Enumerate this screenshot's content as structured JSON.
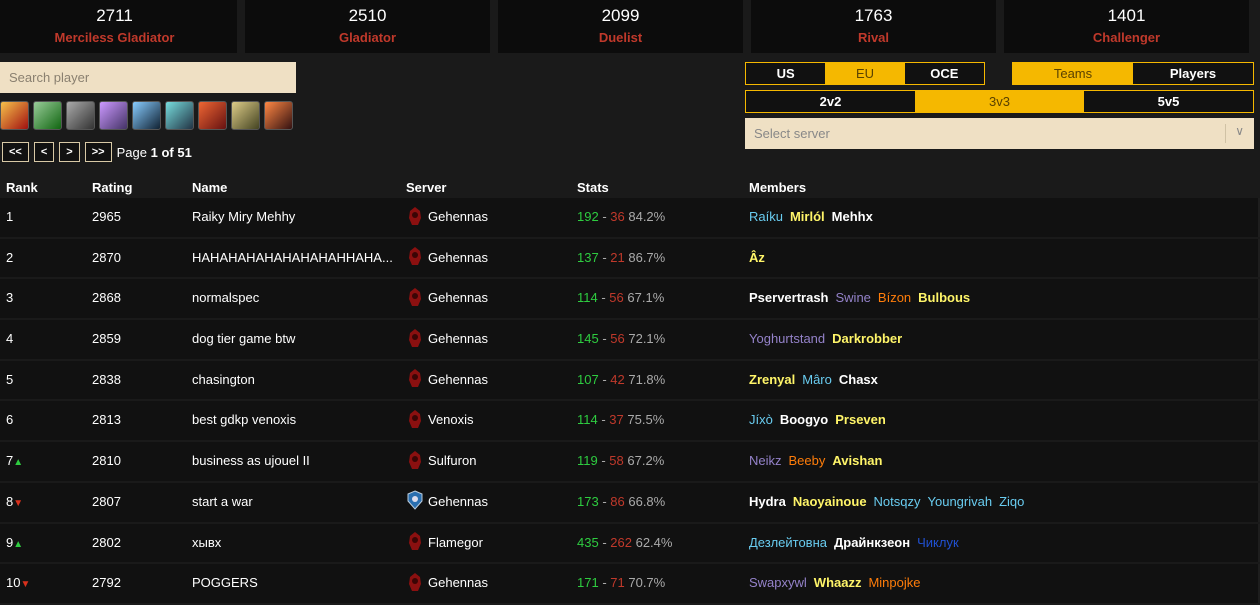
{
  "cutoffs": [
    {
      "value": "2711",
      "label": "Merciless Gladiator"
    },
    {
      "value": "2510",
      "label": "Gladiator"
    },
    {
      "value": "2099",
      "label": "Duelist"
    },
    {
      "value": "1763",
      "label": "Rival"
    },
    {
      "value": "1401",
      "label": "Challenger"
    }
  ],
  "search": {
    "placeholder": "Search player"
  },
  "class_icons": [
    "icon-class-1",
    "icon-class-2",
    "icon-class-3",
    "icon-class-4",
    "icon-class-5",
    "icon-class-6",
    "icon-class-7",
    "icon-class-8",
    "icon-class-9"
  ],
  "pager": {
    "first": "<<",
    "prev": "<",
    "next": ">",
    "last": ">>",
    "page_label": "Page",
    "page": "1",
    "of": "of",
    "total": "51"
  },
  "regions": [
    {
      "label": "US",
      "active": false
    },
    {
      "label": "EU",
      "active": true
    },
    {
      "label": "OCE",
      "active": false
    }
  ],
  "modes": [
    {
      "label": "Teams",
      "active": true
    },
    {
      "label": "Players",
      "active": false
    }
  ],
  "brackets": [
    {
      "label": "2v2",
      "active": false
    },
    {
      "label": "3v3",
      "active": true
    },
    {
      "label": "5v5",
      "active": false
    }
  ],
  "server_select": {
    "placeholder": "Select server"
  },
  "colors": {
    "accent": "#f5b800",
    "mage": "#69ccf0",
    "rogue": "#fff569",
    "priest": "#ffffff",
    "warlock": "#9482c9",
    "druid": "#ff7d0a",
    "shaman": "#2050d0",
    "win": "#2ecc40",
    "loss": "#c0392b"
  },
  "table": {
    "headers": [
      "Rank",
      "Rating",
      "Name",
      "Server",
      "Stats",
      "Members"
    ],
    "rows": [
      {
        "rank": "1",
        "trend": "",
        "rating": "2965",
        "name": "Raiky Miry Mehhy",
        "faction": "horde",
        "server": "Gehennas",
        "wins": "192",
        "losses": "36",
        "pct": "84.2%",
        "members": [
          {
            "n": "Raíku",
            "c": "mage"
          },
          {
            "n": "Mirlól",
            "c": "rogue"
          },
          {
            "n": "Mehhx",
            "c": "priest"
          }
        ]
      },
      {
        "rank": "2",
        "trend": "",
        "rating": "2870",
        "name": "HAHAHAHAHAHAHAHAHHAHA...",
        "faction": "horde",
        "server": "Gehennas",
        "wins": "137",
        "losses": "21",
        "pct": "86.7%",
        "members": [
          {
            "n": "Âz",
            "c": "rogue"
          }
        ]
      },
      {
        "rank": "3",
        "trend": "",
        "rating": "2868",
        "name": "normalspec",
        "faction": "horde",
        "server": "Gehennas",
        "wins": "114",
        "losses": "56",
        "pct": "67.1%",
        "members": [
          {
            "n": "Pservertrash",
            "c": "priest"
          },
          {
            "n": "Swine",
            "c": "warlock"
          },
          {
            "n": "Bízon",
            "c": "druid"
          },
          {
            "n": "Bulbous",
            "c": "rogue"
          }
        ]
      },
      {
        "rank": "4",
        "trend": "",
        "rating": "2859",
        "name": "dog tier game btw",
        "faction": "horde",
        "server": "Gehennas",
        "wins": "145",
        "losses": "56",
        "pct": "72.1%",
        "members": [
          {
            "n": "Yoghurtstand",
            "c": "warlock"
          },
          {
            "n": "Darkrobber",
            "c": "rogue"
          }
        ]
      },
      {
        "rank": "5",
        "trend": "",
        "rating": "2838",
        "name": "chasington",
        "faction": "horde",
        "server": "Gehennas",
        "wins": "107",
        "losses": "42",
        "pct": "71.8%",
        "members": [
          {
            "n": "Zrenyal",
            "c": "rogue"
          },
          {
            "n": "Mâro",
            "c": "mage"
          },
          {
            "n": "Chasx",
            "c": "priest"
          }
        ]
      },
      {
        "rank": "6",
        "trend": "",
        "rating": "2813",
        "name": "best gdkp venoxis",
        "faction": "horde",
        "server": "Venoxis",
        "wins": "114",
        "losses": "37",
        "pct": "75.5%",
        "members": [
          {
            "n": "Jíxò",
            "c": "mage"
          },
          {
            "n": "Boogyo",
            "c": "priest"
          },
          {
            "n": "Prseven",
            "c": "rogue"
          }
        ]
      },
      {
        "rank": "7",
        "trend": "up",
        "rating": "2810",
        "name": "business as ujouel II",
        "faction": "horde",
        "server": "Sulfuron",
        "wins": "119",
        "losses": "58",
        "pct": "67.2%",
        "members": [
          {
            "n": "Neikz",
            "c": "warlock"
          },
          {
            "n": "Beeby",
            "c": "druid"
          },
          {
            "n": "Avishan",
            "c": "rogue"
          }
        ]
      },
      {
        "rank": "8",
        "trend": "down",
        "rating": "2807",
        "name": "start a war",
        "faction": "alliance",
        "server": "Gehennas",
        "wins": "173",
        "losses": "86",
        "pct": "66.8%",
        "members": [
          {
            "n": "Hydra",
            "c": "priest"
          },
          {
            "n": "Naoyainoue",
            "c": "rogue"
          },
          {
            "n": "Notsqzy",
            "c": "mage"
          },
          {
            "n": "Youngrivah",
            "c": "mage"
          },
          {
            "n": "Ziqo",
            "c": "mage"
          }
        ]
      },
      {
        "rank": "9",
        "trend": "up",
        "rating": "2802",
        "name": "хывх",
        "faction": "horde",
        "server": "Flamegor",
        "wins": "435",
        "losses": "262",
        "pct": "62.4%",
        "members": [
          {
            "n": "Дезлейтовна",
            "c": "mage"
          },
          {
            "n": "Драйнкзеон",
            "c": "priest"
          },
          {
            "n": "Чиклук",
            "c": "shaman"
          }
        ]
      },
      {
        "rank": "10",
        "trend": "down",
        "rating": "2792",
        "name": "POGGERS",
        "faction": "horde",
        "server": "Gehennas",
        "wins": "171",
        "losses": "71",
        "pct": "70.7%",
        "members": [
          {
            "n": "Swapxywl",
            "c": "warlock"
          },
          {
            "n": "Whaazz",
            "c": "rogue"
          },
          {
            "n": "Minpojke",
            "c": "druid"
          }
        ]
      }
    ]
  }
}
